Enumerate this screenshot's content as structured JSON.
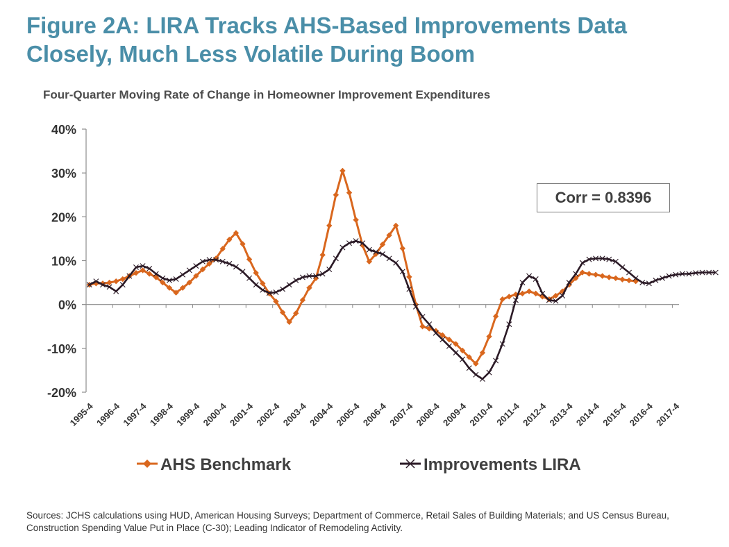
{
  "title": "Figure 2A: LIRA Tracks AHS-Based Improvements Data Closely, Much Less Volatile During Boom",
  "annotation": "Corr = 0.8396",
  "sources": "Sources: JCHS calculations using HUD, American Housing Surveys; Department of Commerce, Retail Sales of Building Materials; and US Census Bureau, Construction Spending Value Put in Place (C-30); Leading Indicator of Remodeling Activity.",
  "colors": {
    "ahs": "#d9671e",
    "lira": "#2b1a26",
    "axis": "#8c8c8c",
    "title": "#4a8ea8"
  },
  "chart_data": {
    "type": "line",
    "title": "Four-Quarter Moving Rate of Change in Homeowner Improvement Expenditures",
    "xlabel": "",
    "ylabel": "",
    "ylim": [
      -20,
      40
    ],
    "y_ticks": [
      "-20%",
      "-10%",
      "0%",
      "10%",
      "20%",
      "30%",
      "40%"
    ],
    "grid": false,
    "legend_position": "bottom",
    "x_start": "1995-4",
    "x_tick_labels": [
      "1995-4",
      "1996-4",
      "1997-4",
      "1998-4",
      "1999-4",
      "2000-4",
      "2001-4",
      "2002-4",
      "2003-4",
      "2004-4",
      "2005-4",
      "2006-4",
      "2007-4",
      "2008-4",
      "2009-4",
      "2010-4",
      "2011-4",
      "2012-4",
      "2013-4",
      "2014-4",
      "2015-4",
      "2016-4",
      "2017-4"
    ],
    "series": [
      {
        "name": "AHS Benchmark",
        "marker": "diamond",
        "values": [
          4.5,
          4.8,
          4.8,
          5.0,
          5.3,
          5.8,
          6.5,
          7.2,
          7.8,
          7.0,
          6.2,
          5.0,
          3.8,
          2.7,
          3.8,
          5.0,
          6.5,
          8.0,
          9.3,
          10.5,
          12.7,
          14.8,
          16.3,
          13.8,
          10.3,
          7.2,
          4.8,
          2.5,
          0.7,
          -1.8,
          -4.0,
          -2.0,
          1.0,
          3.8,
          6.0,
          11.3,
          18.0,
          25.0,
          30.5,
          25.5,
          19.3,
          13.5,
          9.8,
          11.5,
          13.7,
          15.8,
          18.0,
          12.8,
          6.3,
          0.0,
          -5.0,
          -5.5,
          -6.0,
          -7.0,
          -8.0,
          -9.0,
          -10.5,
          -12.0,
          -13.5,
          -11.0,
          -7.3,
          -2.7,
          1.2,
          1.8,
          2.3,
          2.5,
          3.0,
          2.5,
          1.8,
          1.2,
          2.0,
          3.0,
          4.5,
          6.0,
          7.3,
          7.0,
          6.8,
          6.5,
          6.2,
          6.0,
          5.7,
          5.5,
          5.3
        ]
      },
      {
        "name": "Improvements LIRA",
        "marker": "x",
        "values": [
          4.5,
          5.3,
          4.5,
          4.0,
          3.0,
          4.5,
          6.5,
          8.5,
          8.8,
          8.2,
          7.0,
          6.0,
          5.5,
          5.8,
          6.8,
          7.8,
          8.8,
          9.8,
          10.2,
          10.2,
          9.8,
          9.3,
          8.6,
          7.5,
          6.0,
          4.5,
          3.3,
          2.6,
          2.8,
          3.5,
          4.5,
          5.5,
          6.2,
          6.5,
          6.5,
          7.0,
          8.0,
          10.5,
          13.0,
          14.0,
          14.5,
          14.0,
          12.5,
          12.0,
          11.5,
          10.5,
          9.5,
          7.5,
          3.5,
          -0.5,
          -2.8,
          -4.5,
          -6.5,
          -8.0,
          -9.5,
          -11.0,
          -12.5,
          -14.5,
          -16.0,
          -17.0,
          -15.5,
          -12.8,
          -9.0,
          -4.5,
          1.0,
          5.0,
          6.5,
          5.8,
          2.5,
          1.0,
          0.8,
          2.0,
          5.0,
          7.0,
          9.5,
          10.3,
          10.5,
          10.5,
          10.3,
          9.8,
          8.5,
          7.3,
          6.0,
          5.0,
          4.8,
          5.5,
          6.0,
          6.5,
          6.8,
          7.0,
          7.0,
          7.2,
          7.3,
          7.3,
          7.3
        ]
      }
    ]
  }
}
